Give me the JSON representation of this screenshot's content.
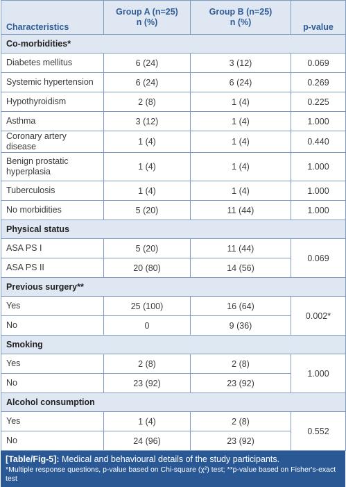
{
  "header": {
    "characteristics": "Characteristics",
    "group_a_line1": "Group A (n=25)",
    "group_a_line2": "n (%)",
    "group_b_line1": "Group B (n=25)",
    "group_b_line2": "n (%)",
    "pvalue": "p-value"
  },
  "comorbidities": {
    "title": "Co-morbidities*",
    "rows": [
      {
        "label": "Diabetes mellitus",
        "a": "6 (24)",
        "b": "3 (12)",
        "p": "0.069"
      },
      {
        "label": "Systemic hypertension",
        "a": "6 (24)",
        "b": "6 (24)",
        "p": "0.269"
      },
      {
        "label": "Hypothyroidism",
        "a": "2 (8)",
        "b": "1 (4)",
        "p": "0.225"
      },
      {
        "label": "Asthma",
        "a": "3 (12)",
        "b": "1 (4)",
        "p": "1.000"
      },
      {
        "label": "Coronary artery disease",
        "a": "1 (4)",
        "b": "1 (4)",
        "p": "0.440"
      },
      {
        "label": "Benign prostatic hyperplasia",
        "a": "1 (4)",
        "b": "1 (4)",
        "p": "1.000"
      },
      {
        "label": "Tuberculosis",
        "a": "1 (4)",
        "b": "1 (4)",
        "p": "1.000"
      },
      {
        "label": "No morbidities",
        "a": "5 (20)",
        "b": "11 (44)",
        "p": "1.000"
      }
    ]
  },
  "physical_status": {
    "title": "Physical status",
    "p": "0.069",
    "rows": [
      {
        "label": "ASA PS I",
        "a": "5 (20)",
        "b": "11 (44)"
      },
      {
        "label": "ASA PS II",
        "a": "20 (80)",
        "b": "14 (56)"
      }
    ]
  },
  "previous_surgery": {
    "title": "Previous surgery**",
    "p": "0.002*",
    "rows": [
      {
        "label": "Yes",
        "a": "25 (100)",
        "b": "16 (64)"
      },
      {
        "label": "No",
        "a": "0",
        "b": "9 (36)"
      }
    ]
  },
  "smoking": {
    "title": "Smoking",
    "p": "1.000",
    "rows": [
      {
        "label": "Yes",
        "a": "2 (8)",
        "b": "2 (8)"
      },
      {
        "label": "No",
        "a": "23 (92)",
        "b": "23 (92)"
      }
    ]
  },
  "alcohol": {
    "title": "Alcohol consumption",
    "p": "0.552",
    "rows": [
      {
        "label": "Yes",
        "a": "1 (4)",
        "b": "2 (8)"
      },
      {
        "label": "No",
        "a": "24 (96)",
        "b": "23 (92)"
      }
    ]
  },
  "caption": {
    "tag": "[Table/Fig-5]:",
    "text": " Medical and behavioural details of the study participants.",
    "footnote": "*Multiple response questions, p-value based on Chi-square (χ²) test; **p-value based on Fisher's-exact test"
  }
}
